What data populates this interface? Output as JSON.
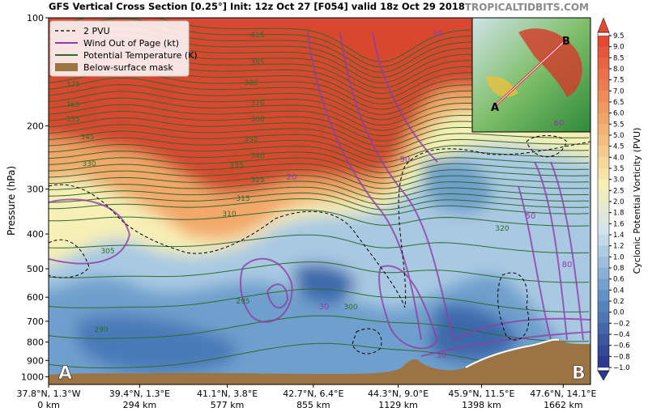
{
  "chart_data": {
    "type": "contour",
    "title": "GFS Vertical Cross Section [0.25°] Init: 12z Oct 27 [F054] valid 18z Oct 29 2018",
    "watermark": "TROPICALTIDBITS.COM",
    "ylabel": "Pressure (hPa)",
    "log_y": true,
    "ylim": [
      1050,
      100
    ],
    "yticks": [
      100,
      200,
      300,
      400,
      500,
      600,
      700,
      800,
      900,
      1000
    ],
    "xlim": [
      0,
      1750
    ],
    "xticks": [
      {
        "value": 0,
        "label": "0 km"
      },
      {
        "value": 294,
        "label": "294 km"
      },
      {
        "value": 577,
        "label": "577 km"
      },
      {
        "value": 855,
        "label": "855 km"
      },
      {
        "value": 1129,
        "label": "1129 km"
      },
      {
        "value": 1398,
        "label": "1398 km"
      },
      {
        "value": 1662,
        "label": "1662 km"
      }
    ],
    "xtick_locations": [
      "37.8°N, 1.3°W",
      "39.4°N, 1.3°E",
      "41.1°N, 3.8°E",
      "42.7°N, 6.4°E",
      "44.3°N, 9.0°E",
      "45.9°N, 11.5°E",
      "47.6°N, 14.1°E"
    ],
    "section_end_labels": [
      "A",
      "B"
    ],
    "legend": [
      {
        "name": "2 PVU",
        "color": "#000000",
        "style": "dashed"
      },
      {
        "name": "Wind Out of Page (kt)",
        "color": "#8e3fa6",
        "style": "line"
      },
      {
        "name": "Potential Temperature (K)",
        "color": "#2f6b2f",
        "style": "line"
      },
      {
        "name": "Below-surface mask",
        "color": "#9c7444",
        "style": "patch"
      }
    ],
    "theta_labels": [
      415,
      395,
      380,
      370,
      360,
      350,
      340,
      335,
      325,
      315,
      310,
      305,
      300,
      295,
      290,
      320,
      375,
      365,
      355,
      345,
      330
    ],
    "wind_labels": [
      40,
      60,
      20,
      30,
      30,
      90,
      80,
      50
    ],
    "colorbar_label": "Cyclonic Potential Vorticity (PVU)",
    "colorbar_ticks": [
      9.5,
      {
        "value": 9,
        "label": "9.0"
      },
      8.5,
      {
        "value": 8,
        "label": "8.0"
      },
      7.5,
      {
        "value": 7,
        "label": "7.0"
      },
      6.5,
      {
        "value": 6,
        "label": "6.0"
      },
      5.5,
      {
        "value": 5,
        "label": "5.0"
      },
      4.5,
      {
        "value": 4,
        "label": "4.0"
      },
      3.5,
      {
        "value": 3,
        "label": "3.0"
      },
      2.5,
      {
        "value": 2,
        "label": "2.0"
      },
      1.8,
      1.6,
      1.4,
      1.2,
      {
        "value": 1,
        "label": "1.0"
      },
      0.8,
      0.6,
      0.4,
      0.2,
      {
        "value": 0,
        "label": "0.0"
      },
      {
        "value": -0.2,
        "label": "−0.2"
      },
      {
        "value": -0.4,
        "label": "−0.4"
      },
      {
        "value": -0.6,
        "label": "−0.6"
      },
      {
        "value": -0.8,
        "label": "−0.8"
      },
      {
        "value": -1,
        "label": "−1.0"
      }
    ]
  }
}
